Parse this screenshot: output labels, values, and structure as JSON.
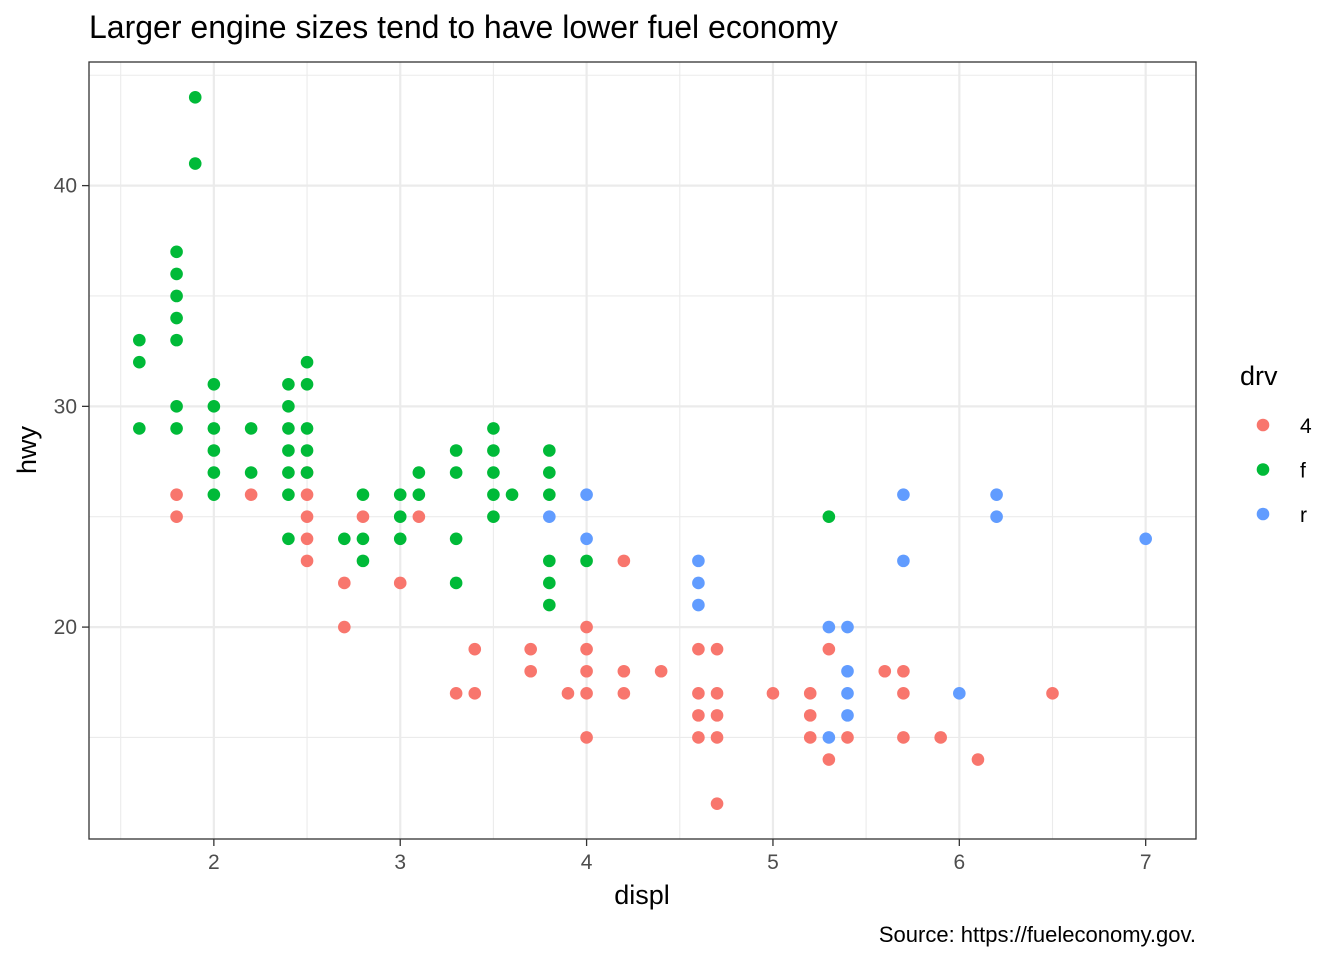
{
  "chart_data": {
    "type": "scatter",
    "title": "Larger engine sizes tend to have lower fuel economy",
    "caption": "Source: https://fueleconomy.gov.",
    "xlabel": "displ",
    "ylabel": "hwy",
    "xlim": [
      1.33,
      7.27
    ],
    "ylim": [
      10.4,
      45.6
    ],
    "x_ticks": [
      2,
      3,
      4,
      5,
      6,
      7
    ],
    "y_ticks": [
      20,
      30,
      40
    ],
    "grid": true,
    "legend": {
      "title": "drv",
      "placement": "right",
      "entries": [
        {
          "label": "4",
          "color": "#F8766D"
        },
        {
          "label": "f",
          "color": "#00BA38"
        },
        {
          "label": "r",
          "color": "#619CFF"
        }
      ]
    },
    "series": [
      {
        "key": "4",
        "color": "#F8766D",
        "points": [
          [
            1.8,
            26
          ],
          [
            1.8,
            25
          ],
          [
            2.2,
            26
          ],
          [
            2.5,
            27
          ],
          [
            2.5,
            26
          ],
          [
            2.5,
            25
          ],
          [
            2.5,
            24
          ],
          [
            2.5,
            23
          ],
          [
            2.7,
            22
          ],
          [
            2.7,
            20
          ],
          [
            2.8,
            25
          ],
          [
            3.0,
            22
          ],
          [
            3.1,
            25
          ],
          [
            3.3,
            17
          ],
          [
            3.4,
            19
          ],
          [
            3.4,
            17
          ],
          [
            3.7,
            19
          ],
          [
            3.7,
            18
          ],
          [
            3.9,
            17
          ],
          [
            4.0,
            20
          ],
          [
            4.0,
            19
          ],
          [
            4.0,
            18
          ],
          [
            4.0,
            17
          ],
          [
            4.0,
            15
          ],
          [
            4.2,
            23
          ],
          [
            4.2,
            18
          ],
          [
            4.2,
            17
          ],
          [
            4.4,
            18
          ],
          [
            4.6,
            19
          ],
          [
            4.6,
            17
          ],
          [
            4.6,
            16
          ],
          [
            4.6,
            15
          ],
          [
            4.7,
            19
          ],
          [
            4.7,
            17
          ],
          [
            4.7,
            16
          ],
          [
            4.7,
            15
          ],
          [
            4.7,
            12
          ],
          [
            5.0,
            17
          ],
          [
            5.2,
            17
          ],
          [
            5.2,
            16
          ],
          [
            5.2,
            15
          ],
          [
            5.3,
            19
          ],
          [
            5.3,
            14
          ],
          [
            5.4,
            15
          ],
          [
            5.6,
            18
          ],
          [
            5.7,
            18
          ],
          [
            5.7,
            17
          ],
          [
            5.7,
            15
          ],
          [
            5.9,
            15
          ],
          [
            6.1,
            14
          ],
          [
            6.5,
            17
          ]
        ]
      },
      {
        "key": "f",
        "color": "#00BA38",
        "points": [
          [
            1.6,
            33
          ],
          [
            1.6,
            32
          ],
          [
            1.6,
            29
          ],
          [
            1.8,
            37
          ],
          [
            1.8,
            36
          ],
          [
            1.8,
            35
          ],
          [
            1.8,
            34
          ],
          [
            1.8,
            33
          ],
          [
            1.8,
            30
          ],
          [
            1.8,
            29
          ],
          [
            1.9,
            44
          ],
          [
            1.9,
            41
          ],
          [
            2.0,
            31
          ],
          [
            2.0,
            30
          ],
          [
            2.0,
            29
          ],
          [
            2.0,
            28
          ],
          [
            2.0,
            27
          ],
          [
            2.0,
            26
          ],
          [
            2.2,
            29
          ],
          [
            2.2,
            27
          ],
          [
            2.4,
            31
          ],
          [
            2.4,
            30
          ],
          [
            2.4,
            29
          ],
          [
            2.4,
            28
          ],
          [
            2.4,
            27
          ],
          [
            2.4,
            26
          ],
          [
            2.4,
            24
          ],
          [
            2.5,
            32
          ],
          [
            2.5,
            31
          ],
          [
            2.5,
            29
          ],
          [
            2.5,
            28
          ],
          [
            2.5,
            27
          ],
          [
            2.7,
            24
          ],
          [
            2.8,
            26
          ],
          [
            2.8,
            24
          ],
          [
            2.8,
            23
          ],
          [
            3.0,
            26
          ],
          [
            3.0,
            25
          ],
          [
            3.0,
            24
          ],
          [
            3.1,
            27
          ],
          [
            3.1,
            26
          ],
          [
            3.3,
            28
          ],
          [
            3.3,
            27
          ],
          [
            3.3,
            24
          ],
          [
            3.3,
            22
          ],
          [
            3.5,
            29
          ],
          [
            3.5,
            28
          ],
          [
            3.5,
            27
          ],
          [
            3.5,
            26
          ],
          [
            3.5,
            25
          ],
          [
            3.6,
            26
          ],
          [
            3.8,
            28
          ],
          [
            3.8,
            27
          ],
          [
            3.8,
            26
          ],
          [
            3.8,
            23
          ],
          [
            3.8,
            22
          ],
          [
            3.8,
            21
          ],
          [
            4.0,
            23
          ],
          [
            5.3,
            25
          ]
        ]
      },
      {
        "key": "r",
        "color": "#619CFF",
        "points": [
          [
            3.8,
            25
          ],
          [
            4.0,
            26
          ],
          [
            4.0,
            24
          ],
          [
            4.6,
            23
          ],
          [
            4.6,
            22
          ],
          [
            4.6,
            21
          ],
          [
            5.3,
            20
          ],
          [
            5.3,
            15
          ],
          [
            5.4,
            20
          ],
          [
            5.4,
            18
          ],
          [
            5.4,
            17
          ],
          [
            5.4,
            16
          ],
          [
            5.7,
            26
          ],
          [
            5.7,
            23
          ],
          [
            6.0,
            17
          ],
          [
            6.2,
            26
          ],
          [
            6.2,
            25
          ],
          [
            7.0,
            24
          ]
        ]
      }
    ]
  }
}
